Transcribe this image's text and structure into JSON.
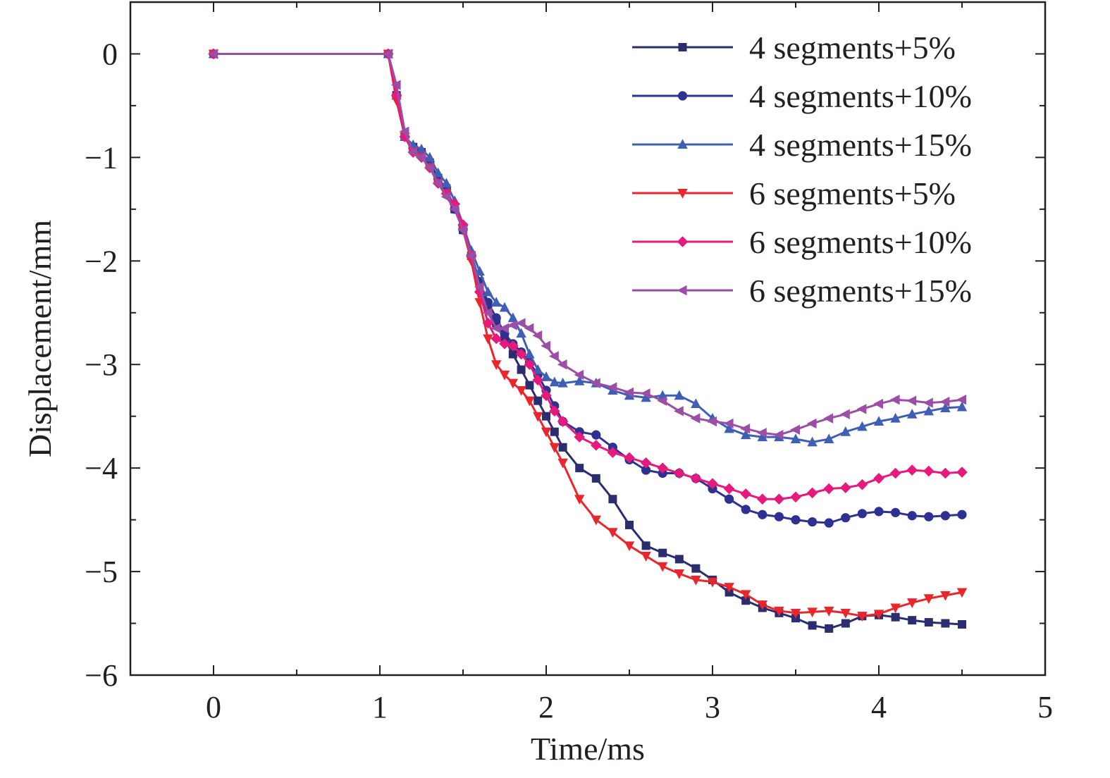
{
  "chart_data": {
    "type": "line",
    "title": "",
    "xlabel": "Time/ms",
    "ylabel": "Displacement/mm",
    "xlim": [
      -0.5,
      5
    ],
    "ylim": [
      -6,
      0.5
    ],
    "xticks": [
      0,
      1,
      2,
      3,
      4,
      5
    ],
    "yticks": [
      0,
      -1,
      -2,
      -3,
      -4,
      -5,
      -6
    ],
    "xtick_labels": [
      "0",
      "1",
      "2",
      "3",
      "4",
      "5"
    ],
    "ytick_labels": [
      "0",
      "−1",
      "−2",
      "−3",
      "−4",
      "−5",
      "−6"
    ],
    "grid": false,
    "legend_position": "top-right",
    "series": [
      {
        "name": "4 segments+5%",
        "color": "#2b2d6e",
        "marker": "square",
        "x": [
          0,
          1.05,
          1.1,
          1.15,
          1.2,
          1.25,
          1.3,
          1.35,
          1.4,
          1.45,
          1.5,
          1.55,
          1.6,
          1.65,
          1.7,
          1.75,
          1.8,
          1.85,
          1.9,
          1.95,
          2.0,
          2.05,
          2.1,
          2.2,
          2.3,
          2.4,
          2.5,
          2.6,
          2.7,
          2.8,
          2.9,
          3.0,
          3.1,
          3.2,
          3.3,
          3.4,
          3.5,
          3.6,
          3.7,
          3.8,
          3.9,
          4.0,
          4.1,
          4.2,
          4.3,
          4.4,
          4.5
        ],
        "y": [
          0,
          0,
          -0.4,
          -0.8,
          -0.9,
          -0.95,
          -1.05,
          -1.2,
          -1.3,
          -1.5,
          -1.7,
          -1.95,
          -2.2,
          -2.45,
          -2.6,
          -2.75,
          -2.9,
          -3.05,
          -3.2,
          -3.35,
          -3.5,
          -3.65,
          -3.8,
          -4.0,
          -4.1,
          -4.3,
          -4.55,
          -4.75,
          -4.82,
          -4.88,
          -4.97,
          -5.08,
          -5.2,
          -5.28,
          -5.35,
          -5.4,
          -5.45,
          -5.52,
          -5.55,
          -5.5,
          -5.43,
          -5.42,
          -5.44,
          -5.47,
          -5.49,
          -5.5,
          -5.51
        ]
      },
      {
        "name": "4 segments+10%",
        "color": "#2e3192",
        "marker": "circle",
        "x": [
          0,
          1.05,
          1.1,
          1.15,
          1.2,
          1.25,
          1.3,
          1.35,
          1.4,
          1.45,
          1.5,
          1.55,
          1.6,
          1.65,
          1.7,
          1.75,
          1.8,
          1.85,
          1.9,
          1.95,
          2.0,
          2.05,
          2.1,
          2.2,
          2.3,
          2.4,
          2.5,
          2.6,
          2.7,
          2.8,
          2.9,
          3.0,
          3.1,
          3.2,
          3.3,
          3.4,
          3.5,
          3.6,
          3.7,
          3.8,
          3.9,
          4.0,
          4.1,
          4.2,
          4.3,
          4.4,
          4.5
        ],
        "y": [
          0,
          0,
          -0.4,
          -0.8,
          -0.9,
          -0.95,
          -1.05,
          -1.2,
          -1.3,
          -1.5,
          -1.7,
          -1.95,
          -2.2,
          -2.4,
          -2.55,
          -2.7,
          -2.8,
          -2.88,
          -2.98,
          -3.1,
          -3.25,
          -3.4,
          -3.55,
          -3.65,
          -3.68,
          -3.8,
          -3.92,
          -4.02,
          -4.05,
          -4.05,
          -4.1,
          -4.2,
          -4.3,
          -4.4,
          -4.45,
          -4.47,
          -4.5,
          -4.52,
          -4.53,
          -4.48,
          -4.44,
          -4.42,
          -4.43,
          -4.46,
          -4.47,
          -4.46,
          -4.45
        ]
      },
      {
        "name": "4 segments+15%",
        "color": "#3f5fb5",
        "marker": "triangle-up",
        "x": [
          0,
          1.05,
          1.1,
          1.15,
          1.2,
          1.25,
          1.3,
          1.35,
          1.4,
          1.45,
          1.5,
          1.55,
          1.6,
          1.65,
          1.7,
          1.75,
          1.8,
          1.85,
          1.9,
          1.95,
          2.0,
          2.05,
          2.1,
          2.2,
          2.3,
          2.4,
          2.5,
          2.6,
          2.7,
          2.8,
          2.9,
          3.0,
          3.1,
          3.2,
          3.3,
          3.4,
          3.5,
          3.6,
          3.7,
          3.8,
          3.9,
          4.0,
          4.1,
          4.2,
          4.3,
          4.4,
          4.5
        ],
        "y": [
          0,
          0,
          -0.4,
          -0.8,
          -0.88,
          -0.92,
          -1.0,
          -1.15,
          -1.25,
          -1.42,
          -1.65,
          -1.9,
          -2.1,
          -2.3,
          -2.4,
          -2.45,
          -2.55,
          -2.7,
          -2.9,
          -3.05,
          -3.12,
          -3.17,
          -3.18,
          -3.16,
          -3.18,
          -3.25,
          -3.3,
          -3.32,
          -3.3,
          -3.3,
          -3.38,
          -3.52,
          -3.62,
          -3.68,
          -3.7,
          -3.7,
          -3.72,
          -3.75,
          -3.72,
          -3.65,
          -3.6,
          -3.55,
          -3.52,
          -3.48,
          -3.45,
          -3.42,
          -3.41
        ]
      },
      {
        "name": "6 segments+5%",
        "color": "#e8262b",
        "marker": "triangle-down",
        "x": [
          0,
          1.05,
          1.1,
          1.15,
          1.2,
          1.25,
          1.3,
          1.35,
          1.4,
          1.45,
          1.5,
          1.55,
          1.6,
          1.65,
          1.7,
          1.75,
          1.8,
          1.85,
          1.9,
          1.95,
          2.0,
          2.05,
          2.1,
          2.2,
          2.3,
          2.4,
          2.5,
          2.6,
          2.7,
          2.8,
          2.9,
          3.0,
          3.1,
          3.2,
          3.3,
          3.4,
          3.5,
          3.6,
          3.7,
          3.8,
          3.9,
          4.0,
          4.1,
          4.2,
          4.3,
          4.4,
          4.5
        ],
        "y": [
          0,
          0,
          -0.45,
          -0.8,
          -0.95,
          -1.0,
          -1.1,
          -1.25,
          -1.35,
          -1.48,
          -1.7,
          -2.0,
          -2.4,
          -2.75,
          -3.0,
          -3.1,
          -3.18,
          -3.25,
          -3.35,
          -3.5,
          -3.65,
          -3.8,
          -3.95,
          -4.3,
          -4.5,
          -4.62,
          -4.75,
          -4.85,
          -4.95,
          -5.02,
          -5.08,
          -5.1,
          -5.15,
          -5.22,
          -5.32,
          -5.38,
          -5.4,
          -5.39,
          -5.38,
          -5.4,
          -5.43,
          -5.41,
          -5.35,
          -5.3,
          -5.26,
          -5.23,
          -5.2
        ]
      },
      {
        "name": "6 segments+10%",
        "color": "#e6197d",
        "marker": "diamond",
        "x": [
          0,
          1.05,
          1.1,
          1.15,
          1.2,
          1.25,
          1.3,
          1.35,
          1.4,
          1.45,
          1.5,
          1.55,
          1.6,
          1.65,
          1.7,
          1.75,
          1.8,
          1.85,
          1.9,
          1.95,
          2.0,
          2.05,
          2.1,
          2.2,
          2.3,
          2.4,
          2.5,
          2.6,
          2.7,
          2.8,
          2.9,
          3.0,
          3.1,
          3.2,
          3.3,
          3.4,
          3.5,
          3.6,
          3.7,
          3.8,
          3.9,
          4.0,
          4.1,
          4.2,
          4.3,
          4.4,
          4.5
        ],
        "y": [
          0,
          0,
          -0.4,
          -0.8,
          -0.95,
          -1.0,
          -1.1,
          -1.25,
          -1.35,
          -1.45,
          -1.65,
          -1.95,
          -2.3,
          -2.6,
          -2.75,
          -2.8,
          -2.82,
          -2.9,
          -3.0,
          -3.15,
          -3.3,
          -3.45,
          -3.55,
          -3.7,
          -3.78,
          -3.85,
          -3.9,
          -3.95,
          -4.0,
          -4.05,
          -4.1,
          -4.15,
          -4.2,
          -4.25,
          -4.3,
          -4.3,
          -4.28,
          -4.24,
          -4.2,
          -4.19,
          -4.16,
          -4.1,
          -4.05,
          -4.02,
          -4.03,
          -4.05,
          -4.04
        ]
      },
      {
        "name": "6 segments+15%",
        "color": "#9b4ea5",
        "marker": "triangle-left",
        "x": [
          0,
          1.05,
          1.1,
          1.15,
          1.2,
          1.25,
          1.3,
          1.35,
          1.4,
          1.45,
          1.5,
          1.55,
          1.6,
          1.65,
          1.7,
          1.75,
          1.8,
          1.85,
          1.9,
          1.95,
          2.0,
          2.05,
          2.1,
          2.2,
          2.3,
          2.4,
          2.5,
          2.6,
          2.7,
          2.8,
          2.9,
          3.0,
          3.1,
          3.2,
          3.3,
          3.4,
          3.5,
          3.6,
          3.7,
          3.8,
          3.9,
          4.0,
          4.1,
          4.2,
          4.3,
          4.4,
          4.5
        ],
        "y": [
          0,
          0,
          -0.3,
          -0.75,
          -0.95,
          -1.0,
          -1.1,
          -1.25,
          -1.38,
          -1.5,
          -1.7,
          -1.95,
          -2.25,
          -2.5,
          -2.65,
          -2.65,
          -2.62,
          -2.6,
          -2.65,
          -2.72,
          -2.82,
          -2.92,
          -3.0,
          -3.1,
          -3.18,
          -3.22,
          -3.27,
          -3.28,
          -3.35,
          -3.45,
          -3.52,
          -3.55,
          -3.57,
          -3.62,
          -3.66,
          -3.68,
          -3.63,
          -3.57,
          -3.52,
          -3.48,
          -3.43,
          -3.38,
          -3.34,
          -3.35,
          -3.37,
          -3.36,
          -3.34
        ]
      }
    ]
  }
}
